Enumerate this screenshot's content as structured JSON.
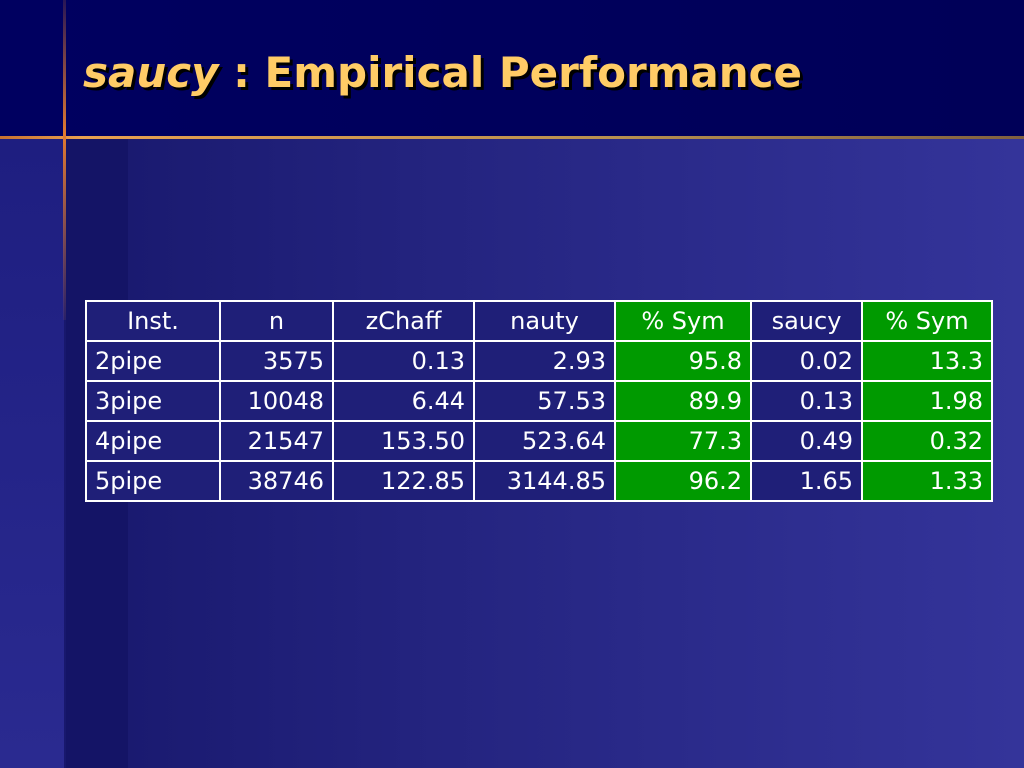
{
  "title": {
    "emphasis": "saucy",
    "rest": " : Empirical Performance"
  },
  "table": {
    "header": [
      "Inst.",
      "n",
      "zChaff",
      "nauty",
      "% Sym",
      "saucy",
      "% Sym"
    ],
    "rows": [
      [
        "2pipe",
        "3575",
        "0.13",
        "2.93",
        "95.8",
        "0.02",
        "13.3"
      ],
      [
        "3pipe",
        "10048",
        "6.44",
        "57.53",
        "89.9",
        "0.13",
        "1.98"
      ],
      [
        "4pipe",
        "21547",
        "153.50",
        "523.64",
        "77.3",
        "0.49",
        "0.32"
      ],
      [
        "5pipe",
        "38746",
        "122.85",
        "3144.85",
        "96.2",
        "1.65",
        "1.33"
      ]
    ]
  }
}
